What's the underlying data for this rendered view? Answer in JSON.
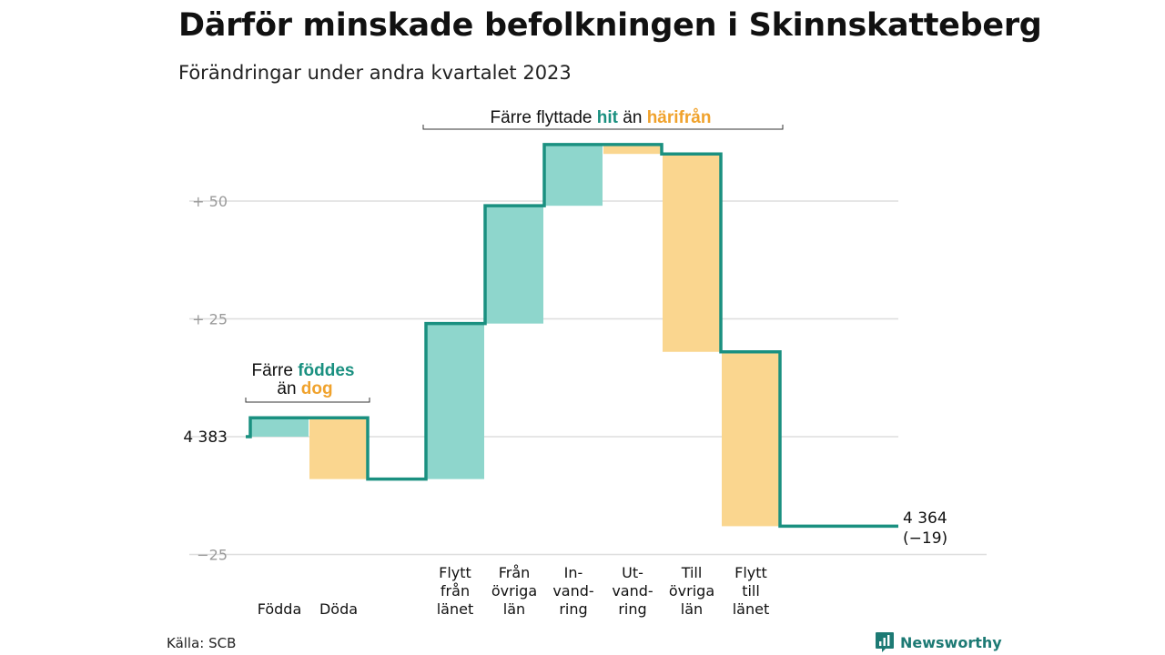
{
  "title": "Därför minskade befolkningen i Skinnskatteberg",
  "subtitle": "Förändringar under andra kvartalet 2023",
  "source": "Källa: SCB",
  "brand": "Newsworthy",
  "colors": {
    "in": "#8ed6cc",
    "out": "#fad68f",
    "line": "#1a9080",
    "accent_in": "#1a9080",
    "accent_out": "#f0a22c",
    "grid": "#dedede",
    "tick": "#9a9a9a"
  },
  "annotations": {
    "birth_death": {
      "line1_prefix": "Färre ",
      "line1_highlight": "föddes",
      "line2_prefix": "än ",
      "line2_highlight": "dog"
    },
    "migration": {
      "prefix": "Färre flyttade ",
      "highlight_in": "hit",
      "middle": " än ",
      "highlight_out": "härifrån"
    }
  },
  "chart_data": {
    "type": "waterfall",
    "title": "Därför minskade befolkningen i Skinnskatteberg",
    "subtitle": "Förändringar under andra kvartalet 2023",
    "start_value": 4383,
    "end_value": 4364,
    "net_change": -19,
    "start_label": "4  383",
    "end_label": "4 364",
    "end_change_label": "(−19)",
    "y_unit": "change relative to start population",
    "ylim": [
      -25,
      62
    ],
    "y_ticks": [
      {
        "value": 50,
        "label": "+  50"
      },
      {
        "value": 25,
        "label": "+  25"
      },
      {
        "value": 0,
        "label": "4  383"
      },
      {
        "value": -25,
        "label": "−25"
      }
    ],
    "grid": true,
    "steps": [
      {
        "category": "Födda",
        "label_lines": [
          "Födda"
        ],
        "change": 4,
        "type": "in"
      },
      {
        "category": "Döda",
        "label_lines": [
          "Döda"
        ],
        "change": -13,
        "type": "out"
      },
      {
        "category": "Flytt från länet",
        "label_lines": [
          "Flytt",
          "från",
          "länet"
        ],
        "change": 33,
        "type": "in"
      },
      {
        "category": "Från övriga län",
        "label_lines": [
          "Från",
          "övriga",
          "län"
        ],
        "change": 25,
        "type": "in"
      },
      {
        "category": "Invandring",
        "label_lines": [
          "In-",
          "vand-",
          "ring"
        ],
        "change": 13,
        "type": "in"
      },
      {
        "category": "Utvandring",
        "label_lines": [
          "Ut-",
          "vand-",
          "ring"
        ],
        "change": -2,
        "type": "out"
      },
      {
        "category": "Till övriga län",
        "label_lines": [
          "Till",
          "övriga",
          "län"
        ],
        "change": -42,
        "type": "out"
      },
      {
        "category": "Flytt till länet",
        "label_lines": [
          "Flytt",
          "till",
          "länet"
        ],
        "change": -37,
        "type": "out"
      }
    ]
  }
}
